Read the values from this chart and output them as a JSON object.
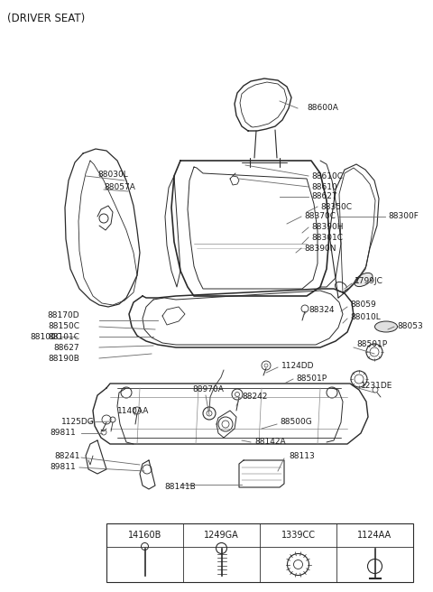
{
  "title": "(DRIVER SEAT)",
  "bg_color": "#ffffff",
  "line_color": "#2a2a2a",
  "text_color": "#1a1a1a",
  "fastener_labels": [
    "14160B",
    "1249GA",
    "1339CC",
    "1124AA"
  ]
}
